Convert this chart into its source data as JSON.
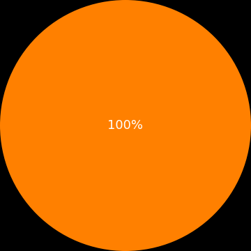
{
  "slices": [
    100
  ],
  "colors": [
    "#FF8000"
  ],
  "labels": [
    "100%"
  ],
  "background_color": "#000000",
  "text_color": "#ffffff",
  "label_fontsize": 13
}
